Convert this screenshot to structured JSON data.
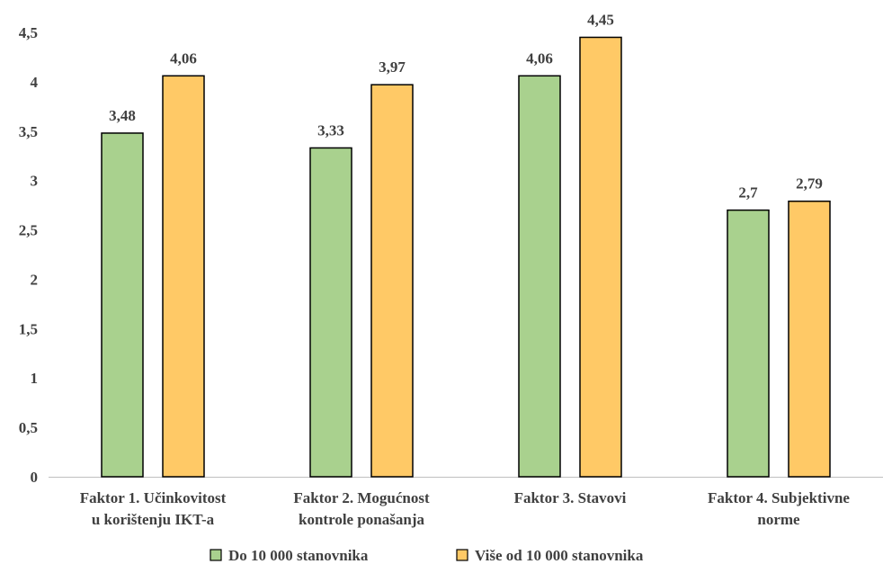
{
  "chart_data": {
    "type": "bar",
    "categories": [
      [
        "Faktor 1. Učinkovitost",
        "u korištenju IKT-a"
      ],
      [
        "Faktor 2. Mogućnost",
        "kontrole ponašanja"
      ],
      [
        "Faktor 3. Stavovi"
      ],
      [
        "Faktor 4. Subjektivne",
        "norme"
      ]
    ],
    "series": [
      {
        "name": "Do 10 000 stanovnika",
        "values": [
          3.48,
          3.33,
          4.06,
          2.7
        ],
        "labels": [
          "3,48",
          "3,33",
          "4,06",
          "2,7"
        ],
        "color": "#a9d18e"
      },
      {
        "name": "Više od 10 000 stanovnika",
        "values": [
          4.06,
          3.97,
          4.45,
          2.79
        ],
        "labels": [
          "4,06",
          "3,97",
          "4,45",
          "2,79"
        ],
        "color": "#ffc966"
      }
    ],
    "ylim": [
      0,
      4.5
    ],
    "yticks": [
      0,
      0.5,
      1,
      1.5,
      2,
      2.5,
      3,
      3.5,
      4,
      4.5
    ],
    "ytick_labels": [
      "0",
      "0,5",
      "1",
      "1,5",
      "2",
      "2,5",
      "3",
      "3,5",
      "4",
      "4,5"
    ],
    "grid": false,
    "legend_position": "bottom",
    "bar_border_color": "#000000",
    "text_color": "#404040"
  }
}
